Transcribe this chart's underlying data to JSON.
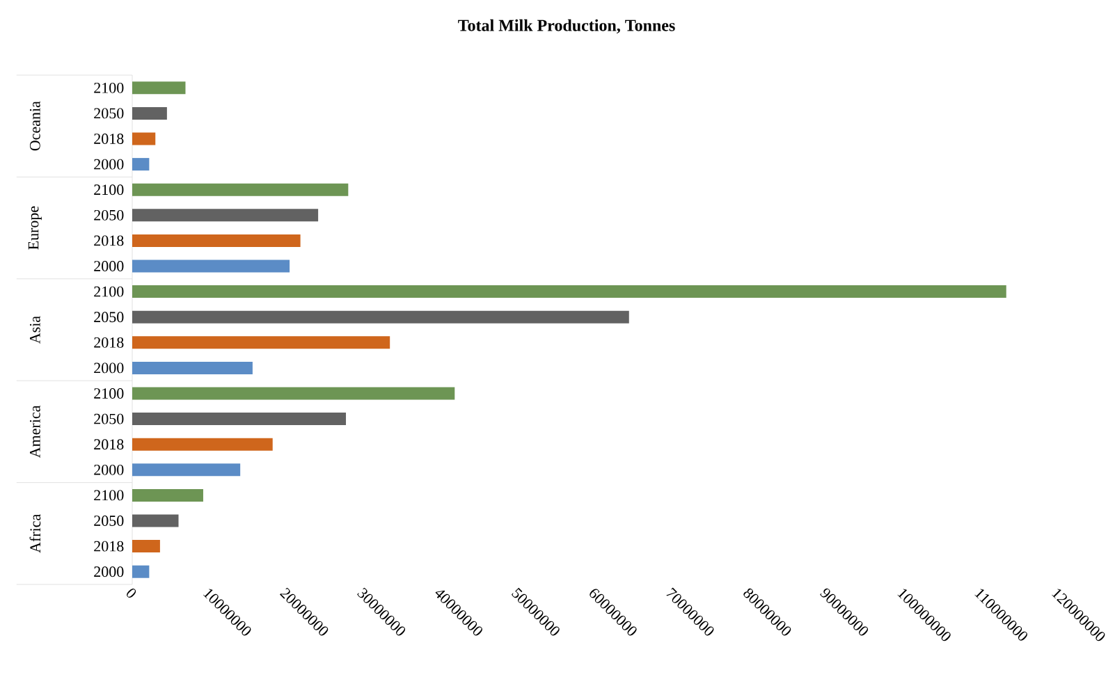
{
  "chart_data": {
    "type": "bar",
    "orientation": "horizontal",
    "title": "Total Milk Production, Tonnes",
    "categories": [
      "Oceania",
      "Europe",
      "Asia",
      "America",
      "Africa"
    ],
    "series": [
      {
        "name": "2000",
        "color": "#5b8cc6",
        "values": [
          2200000,
          20400000,
          15600000,
          14000000,
          2200000
        ]
      },
      {
        "name": "2018",
        "color": "#cf661c",
        "values": [
          3000000,
          21800000,
          33400000,
          18200000,
          3600000
        ]
      },
      {
        "name": "2050",
        "color": "#626262",
        "values": [
          4500000,
          24100000,
          64400000,
          27700000,
          6000000
        ]
      },
      {
        "name": "2100",
        "color": "#6d9554",
        "values": [
          6900000,
          28000000,
          113300000,
          41800000,
          9200000
        ]
      }
    ],
    "xlim": [
      0,
      120000000
    ],
    "xticks": [
      0,
      10000000,
      20000000,
      30000000,
      40000000,
      50000000,
      60000000,
      70000000,
      80000000,
      90000000,
      100000000,
      110000000,
      120000000
    ]
  }
}
